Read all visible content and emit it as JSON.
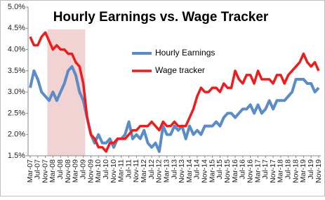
{
  "chart_data": {
    "type": "line",
    "title": "Hourly Earnings vs. Wage Tracker",
    "categories": [
      "Mar-07",
      null,
      "Jul-07",
      null,
      "Nov-07",
      null,
      "Mar-08",
      null,
      "Jul-08",
      null,
      "Nov-08",
      null,
      "Mar-09",
      null,
      "Jul-09",
      null,
      "Nov-09",
      null,
      "Mar-10",
      null,
      "Jul-10",
      null,
      "Nov-10",
      null,
      "Mar-11",
      null,
      "Jul-11",
      null,
      "Nov-11",
      null,
      "Mar-12",
      null,
      "Jul-12",
      null,
      "Nov-12",
      null,
      "Mar-13",
      null,
      "Jul-13",
      null,
      "Nov-13",
      null,
      "Mar-14",
      null,
      "Jul-14",
      null,
      "Nov-14",
      null,
      "Mar-15",
      null,
      "Jul-15",
      null,
      "Nov-15",
      null,
      "Mar-16",
      null,
      "Jul-16",
      null,
      "Nov-16",
      null,
      "Mar-17",
      null,
      "Jul-17",
      null,
      "Nov-17",
      null,
      "Mar-18",
      null,
      "Jul-18",
      null,
      "Nov-18",
      null,
      "Mar-19",
      null,
      "Jul-19",
      null,
      "Nov-19"
    ],
    "series": [
      {
        "name": "Hourly Earnings",
        "color": "#5b8cc6",
        "width": 4,
        "values": [
          3.1,
          3.5,
          3.3,
          3.0,
          2.9,
          2.8,
          3.0,
          2.8,
          3.0,
          3.2,
          3.5,
          3.6,
          3.4,
          3.0,
          2.8,
          2.4,
          2.0,
          1.8,
          2.0,
          1.8,
          1.8,
          1.9,
          1.7,
          1.9,
          1.9,
          2.0,
          2.3,
          1.9,
          2.0,
          1.9,
          2.1,
          1.8,
          1.7,
          1.8,
          1.6,
          2.2,
          2.0,
          2.0,
          2.2,
          2.1,
          2.2,
          1.9,
          2.2,
          2.0,
          2.1,
          2.0,
          2.2,
          2.2,
          2.2,
          2.3,
          2.2,
          2.4,
          2.5,
          2.5,
          2.4,
          2.5,
          2.6,
          2.6,
          2.7,
          2.5,
          2.7,
          2.5,
          2.6,
          2.8,
          2.6,
          2.8,
          2.8,
          2.8,
          2.9,
          3.0,
          3.3,
          3.3,
          3.3,
          3.2,
          3.2,
          3.0,
          3.1
        ]
      },
      {
        "name": "Wage tracker",
        "color": "#ee1c1c",
        "width": 3.5,
        "values": [
          4.3,
          4.1,
          4.1,
          4.3,
          4.4,
          4.2,
          4.0,
          4.1,
          4.0,
          4.0,
          3.9,
          3.9,
          3.7,
          3.6,
          3.2,
          2.4,
          2.0,
          1.9,
          1.7,
          1.7,
          1.6,
          1.8,
          1.8,
          1.9,
          1.9,
          1.9,
          2.0,
          2.1,
          2.1,
          2.2,
          2.2,
          2.2,
          2.3,
          2.2,
          2.1,
          2.3,
          2.2,
          2.2,
          2.3,
          2.2,
          2.2,
          2.2,
          2.4,
          2.6,
          2.9,
          3.1,
          3.0,
          3.0,
          3.1,
          3.1,
          3.0,
          3.2,
          3.1,
          3.1,
          3.5,
          3.3,
          3.2,
          3.4,
          3.4,
          3.2,
          3.5,
          3.3,
          3.3,
          3.3,
          3.2,
          3.4,
          3.4,
          3.2,
          3.4,
          3.5,
          3.6,
          3.7,
          3.9,
          3.7,
          3.6,
          3.7,
          3.5
        ]
      }
    ],
    "shaded_range": {
      "from": "Nov-07",
      "to": "Jul-09",
      "color": "#f2d3d3"
    },
    "ylim": [
      1.5,
      5.0
    ],
    "yticks": [
      {
        "value": 1.5,
        "label": "1.5%"
      },
      {
        "value": 2.0,
        "label": "2.0%"
      },
      {
        "value": 2.5,
        "label": "2.5%"
      },
      {
        "value": 3.0,
        "label": "3.0%"
      },
      {
        "value": 3.5,
        "label": "3.5%"
      },
      {
        "value": 4.0,
        "label": "4.0%"
      },
      {
        "value": 4.5,
        "label": "4.5%"
      },
      {
        "value": 5.0,
        "label": "5.0%"
      }
    ],
    "grid": false,
    "legend_position": "center"
  }
}
